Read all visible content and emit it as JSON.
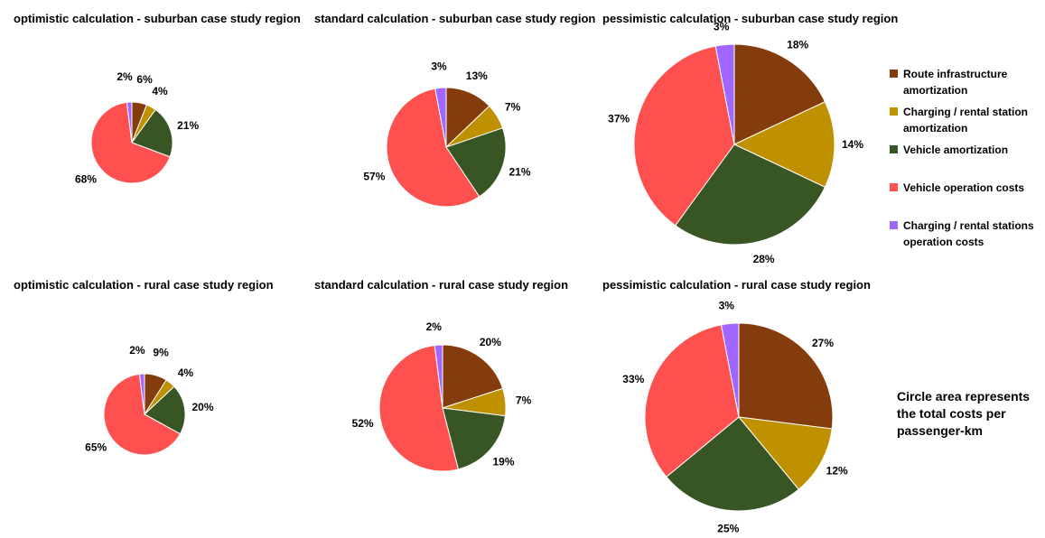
{
  "chart_data": [
    {
      "type": "pie",
      "title": "optimistic calculation - suburban case study region",
      "categories": [
        "Route infrastructure amortization",
        "Charging / rental station amortization",
        "Vehicle amortization",
        "Vehicle operation costs",
        "Charging / rental stations operation costs"
      ],
      "values": [
        6,
        4,
        21,
        68,
        2
      ],
      "labels": [
        "6%",
        "4%",
        "21%",
        "68%",
        "2%"
      ]
    },
    {
      "type": "pie",
      "title": "standard calculation - suburban case study region",
      "categories": [
        "Route infrastructure amortization",
        "Charging / rental station amortization",
        "Vehicle amortization",
        "Vehicle operation costs",
        "Charging / rental stations operation costs"
      ],
      "values": [
        13,
        7,
        21,
        57,
        3
      ],
      "labels": [
        "13%",
        "7%",
        "21%",
        "57%",
        "3%"
      ]
    },
    {
      "type": "pie",
      "title": "pessimistic calculation - suburban case study region",
      "categories": [
        "Route infrastructure amortization",
        "Charging / rental station amortization",
        "Vehicle amortization",
        "Vehicle operation costs",
        "Charging / rental stations operation costs"
      ],
      "values": [
        18,
        14,
        28,
        37,
        3
      ],
      "labels": [
        "18%",
        "14%",
        "28%",
        "37%",
        "3%"
      ]
    },
    {
      "type": "pie",
      "title": "optimistic calculation - rural case study region",
      "categories": [
        "Route infrastructure amortization",
        "Charging / rental station amortization",
        "Vehicle amortization",
        "Vehicle operation costs",
        "Charging / rental stations operation costs"
      ],
      "values": [
        9,
        4,
        20,
        65,
        2
      ],
      "labels": [
        "9%",
        "4%",
        "20%",
        "65%",
        "2%"
      ]
    },
    {
      "type": "pie",
      "title": "standard calculation - rural case study region",
      "categories": [
        "Route infrastructure amortization",
        "Charging / rental station amortization",
        "Vehicle amortization",
        "Vehicle operation costs",
        "Charging / rental stations operation costs"
      ],
      "values": [
        20,
        7,
        19,
        52,
        2
      ],
      "labels": [
        "20%",
        "7%",
        "19%",
        "52%",
        "2%"
      ]
    },
    {
      "type": "pie",
      "title": "pessimistic calculation - rural case study region",
      "categories": [
        "Route infrastructure amortization",
        "Charging / rental station amortization",
        "Vehicle amortization",
        "Vehicle operation costs",
        "Charging / rental stations operation costs"
      ],
      "values": [
        27,
        12,
        25,
        33,
        3
      ],
      "labels": [
        "27%",
        "12%",
        "25%",
        "33%",
        "3%"
      ]
    }
  ],
  "legend": {
    "items": [
      {
        "lines": [
          "Route infrastructure",
          "amortization"
        ],
        "color": "#843C0C"
      },
      {
        "lines": [
          "Charging / rental station",
          "amortization"
        ],
        "color": "#BF9000"
      },
      {
        "lines": [
          "Vehicle amortization"
        ],
        "color": "#375623"
      },
      {
        "lines": [
          "Vehicle operation costs"
        ],
        "color": "#FF5050"
      },
      {
        "lines": [
          "Charging / rental stations",
          "operation costs"
        ],
        "color": "#A066FF"
      }
    ]
  },
  "note": "Circle area represents the total costs per passenger-km"
}
